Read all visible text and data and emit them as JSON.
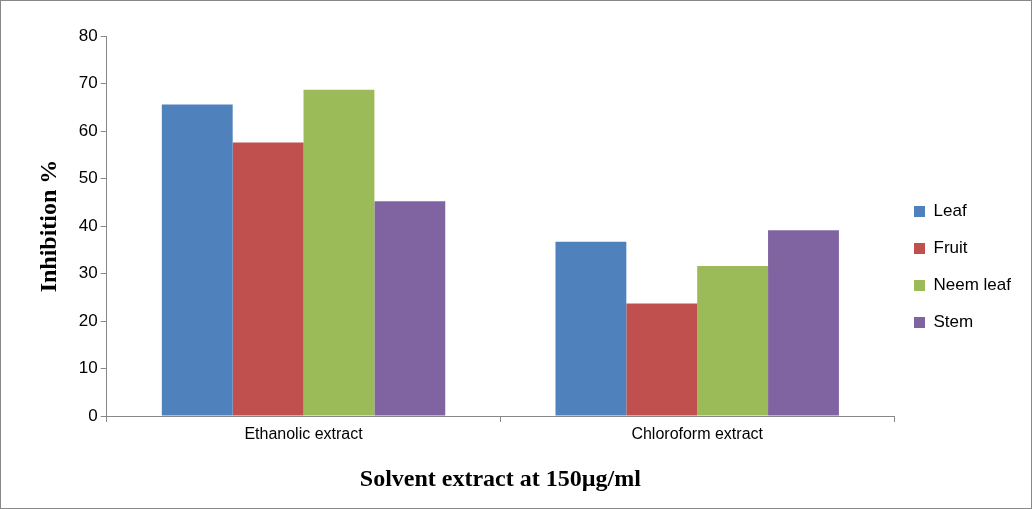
{
  "chart_data": {
    "type": "bar",
    "xlabel": "Solvent extract at 150µg/ml",
    "ylabel": "Inhibition %",
    "categories": [
      "Ethanolic extract",
      "Chloroform extract"
    ],
    "series": [
      {
        "name": "Leaf",
        "color": "#4f81bd",
        "values": [
          65.6,
          36.7
        ]
      },
      {
        "name": "Fruit",
        "color": "#c0504d",
        "values": [
          57.6,
          23.7
        ]
      },
      {
        "name": "Neem leaf",
        "color": "#9bbb59",
        "values": [
          68.7,
          31.6
        ]
      },
      {
        "name": "Stem",
        "color": "#8064a2",
        "values": [
          45.2,
          39.1
        ]
      }
    ],
    "ylim": [
      0,
      80
    ],
    "yticks": [
      0,
      10,
      20,
      30,
      40,
      50,
      60,
      70,
      80
    ],
    "grid": false,
    "legend": "right"
  }
}
